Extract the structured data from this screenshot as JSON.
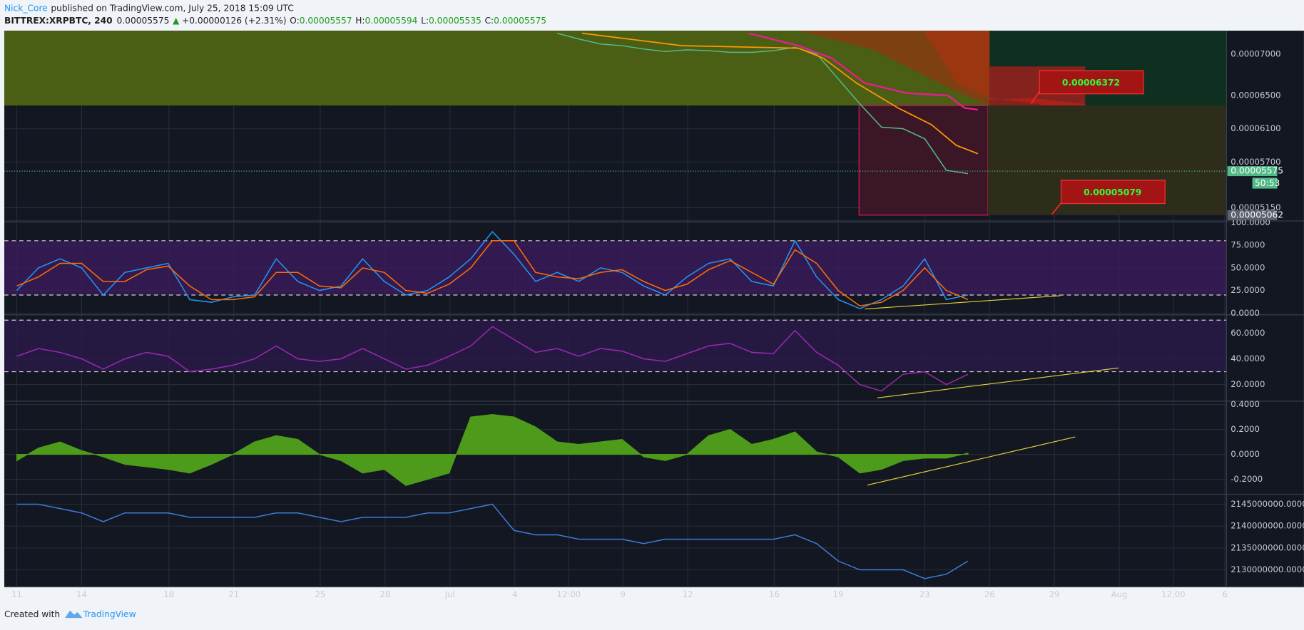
{
  "header": {
    "author": "Nick_Core",
    "published": "published on TradingView.com, July 25, 2018 15:09 UTC",
    "symbol": "BITTREX:XRPBTC, 240",
    "last": "0.00005575",
    "change": "+0.00000126 (+2.31%)",
    "ohlc": [
      {
        "label": "O:",
        "value": "0.00005557"
      },
      {
        "label": "H:",
        "value": "0.00005594"
      },
      {
        "label": "L:",
        "value": "0.00005535"
      },
      {
        "label": "C:",
        "value": "0.00005575"
      }
    ]
  },
  "chart_data": [
    {
      "type": "line",
      "ylim": [
        5e-05,
        7.28e-05
      ],
      "yticks": [
        {
          "value": 7e-05,
          "label": "0.00007000"
        },
        {
          "value": 6.5e-05,
          "label": "0.00006500"
        },
        {
          "value": 6.1e-05,
          "label": "0.00006100"
        },
        {
          "value": 5.7e-05,
          "label": "0.00005700"
        },
        {
          "value": 5.15e-05,
          "label": "0.00005150"
        }
      ],
      "series": [
        {
          "color": "#53b987",
          "values": [
            null,
            null,
            null,
            null,
            null,
            null,
            null,
            null,
            null,
            null,
            null,
            null,
            null,
            null,
            null,
            null,
            null,
            null,
            null,
            null,
            null,
            null,
            null,
            null,
            null,
            7.25e-05,
            7.18e-05,
            7.12e-05,
            7.1e-05,
            7.06e-05,
            7.03e-05,
            7.05e-05,
            7.04e-05,
            7.02e-05,
            7.02e-05,
            7.04e-05,
            7.08e-05,
            7e-05,
            6.7e-05,
            6.4e-05,
            6.12e-05,
            6.1e-05,
            5.98e-05,
            5.6e-05,
            5.56e-05
          ]
        }
      ]
    },
    {
      "type": "line",
      "ylim": [
        0,
        100
      ],
      "yticks": [
        {
          "value": 100,
          "label": "100.0000"
        },
        {
          "value": 75,
          "label": "75.0000"
        },
        {
          "value": 50,
          "label": "50.0000"
        },
        {
          "value": 25,
          "label": "25.0000"
        },
        {
          "value": 0,
          "label": "0.0000"
        }
      ],
      "levels": [
        20,
        80
      ],
      "series": [
        {
          "color": "#2196f3",
          "values": [
            25,
            50,
            60,
            50,
            20,
            45,
            50,
            55,
            15,
            12,
            18,
            20,
            60,
            35,
            25,
            30,
            60,
            35,
            20,
            25,
            40,
            60,
            90,
            65,
            35,
            45,
            35,
            50,
            45,
            30,
            20,
            40,
            55,
            60,
            35,
            30,
            80,
            40,
            15,
            5,
            15,
            30,
            60,
            15,
            20
          ]
        },
        {
          "color": "#ff6d00",
          "values": [
            30,
            40,
            55,
            55,
            35,
            35,
            48,
            52,
            30,
            15,
            15,
            18,
            45,
            45,
            30,
            28,
            50,
            45,
            25,
            22,
            32,
            50,
            80,
            80,
            45,
            40,
            38,
            45,
            48,
            35,
            25,
            32,
            48,
            58,
            45,
            32,
            70,
            55,
            25,
            8,
            12,
            25,
            50,
            25,
            15
          ]
        }
      ]
    },
    {
      "type": "line",
      "ylim": [
        7.1,
        73.5
      ],
      "yticks": [
        {
          "value": 60,
          "label": "60.0000"
        },
        {
          "value": 40,
          "label": "40.0000"
        },
        {
          "value": 20,
          "label": "20.0000"
        }
      ],
      "levels": [
        30,
        70
      ],
      "series": [
        {
          "color": "#9c27b0",
          "values": [
            42,
            48,
            45,
            40,
            32,
            40,
            45,
            42,
            30,
            32,
            35,
            40,
            50,
            40,
            38,
            40,
            48,
            40,
            32,
            35,
            42,
            50,
            65,
            55,
            45,
            48,
            42,
            48,
            46,
            40,
            38,
            44,
            50,
            52,
            45,
            44,
            62,
            45,
            35,
            20,
            15,
            28,
            30,
            20,
            28
          ]
        }
      ]
    },
    {
      "type": "area",
      "ylim": [
        -0.32,
        0.42
      ],
      "yticks": [
        {
          "value": 0.4,
          "label": "0.4000"
        },
        {
          "value": 0.2,
          "label": "0.2000"
        },
        {
          "value": 0,
          "label": "0.0000"
        },
        {
          "value": -0.2,
          "label": "-0.2000"
        }
      ],
      "series": [
        {
          "color": "#4e9a1a",
          "values": [
            -0.05,
            0.05,
            0.1,
            0.03,
            -0.02,
            -0.08,
            -0.1,
            -0.12,
            -0.15,
            -0.08,
            0,
            0.1,
            0.15,
            0.12,
            0,
            -0.05,
            -0.15,
            -0.12,
            -0.25,
            -0.2,
            -0.15,
            0.3,
            0.32,
            0.3,
            0.22,
            0.1,
            0.08,
            0.1,
            0.12,
            -0.02,
            -0.05,
            0,
            0.15,
            0.2,
            0.08,
            0.12,
            0.18,
            0.02,
            -0.02,
            -0.15,
            -0.12,
            -0.05,
            -0.03,
            -0.03,
            0.01
          ]
        }
      ]
    },
    {
      "type": "line",
      "ylim": [
        2126200000,
        2147080000
      ],
      "yticks": [
        {
          "value": 2145000000,
          "label": "2145000000.0000"
        },
        {
          "value": 2140000000,
          "label": "2140000000.0000"
        },
        {
          "value": 2135000000,
          "label": "2135000000.0000"
        },
        {
          "value": 2130000000,
          "label": "2130000000.0000"
        }
      ],
      "series": [
        {
          "color": "#3d7bd6",
          "values": [
            2145000000,
            2145000000,
            2144000000,
            2143000000,
            2141000000,
            2143000000,
            2143000000,
            2143000000,
            2142000000,
            2142000000,
            2142000000,
            2142000000,
            2143000000,
            2143000000,
            2142000000,
            2141000000,
            2142000000,
            2142000000,
            2142000000,
            2143000000,
            2143000000,
            2144000000,
            2145000000,
            2139000000,
            2138000000,
            2138000000,
            2137000000,
            2137000000,
            2137000000,
            2136000000,
            2137000000,
            2137000000,
            2137000000,
            2137000000,
            2137000000,
            2137000000,
            2138000000,
            2136000000,
            2132000000,
            2130000000,
            2130000000,
            2130000000,
            2128000000,
            2129000000,
            2132000000
          ]
        }
      ]
    }
  ],
  "time_axis": [
    "11",
    "14",
    "18",
    "21",
    "25",
    "28",
    "Jul",
    "4",
    "12:00",
    "9",
    "12",
    "16",
    "19",
    "23",
    "26",
    "29",
    "Aug",
    "12:00",
    "6"
  ],
  "price_labels": {
    "current": "0.00005575",
    "countdown": "50:53",
    "marker": "0.00005062"
  },
  "annotations": [
    "0.00006372",
    "0.00005079"
  ],
  "footer": {
    "created": "Created with",
    "brand": "TradingView"
  }
}
